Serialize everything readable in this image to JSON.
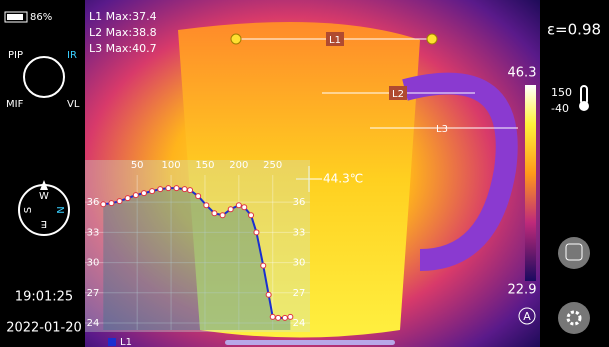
{
  "status": {
    "battery": "86%",
    "time": "19:01:25",
    "date": "2022-01-20"
  },
  "modes": {
    "pip": "PIP",
    "ir": "IR",
    "mif": "MIF",
    "vl": "VL"
  },
  "compass": {
    "w": "W",
    "s": "S",
    "e": "E",
    "n": "N"
  },
  "measurements": [
    "L1 Max:37.4",
    "L2 Max:38.8",
    "L3 Max:40.7"
  ],
  "lines": [
    "L1",
    "L2",
    "L3"
  ],
  "spot": "44.3℃",
  "emissivity": "ε=0.98",
  "scale": {
    "max": "46.3",
    "min": "22.9"
  },
  "range": {
    "high": "150",
    "low": "-40"
  },
  "auto": "A",
  "chart_data": {
    "type": "line",
    "x": [
      0,
      12,
      24,
      36,
      48,
      60,
      72,
      84,
      96,
      108,
      120,
      128,
      140,
      152,
      164,
      176,
      188,
      200,
      208,
      218,
      226,
      236,
      244,
      250,
      258,
      268,
      276
    ],
    "series": [
      {
        "name": "L1",
        "color": "#1a2fd0",
        "values": [
          35.8,
          35.9,
          36.1,
          36.4,
          36.7,
          36.9,
          37.1,
          37.3,
          37.4,
          37.4,
          37.3,
          37.2,
          36.6,
          35.7,
          34.9,
          34.7,
          35.3,
          35.7,
          35.5,
          34.7,
          33.0,
          29.7,
          26.8,
          24.6,
          24.5,
          24.5,
          24.6
        ]
      }
    ],
    "xlim": [
      -27,
      305
    ],
    "ylim": [
      23.3,
      38.7
    ],
    "xticks": [
      50,
      100,
      150,
      200,
      250
    ],
    "yticks": [
      24,
      27,
      30,
      33,
      36
    ],
    "grid": true
  }
}
